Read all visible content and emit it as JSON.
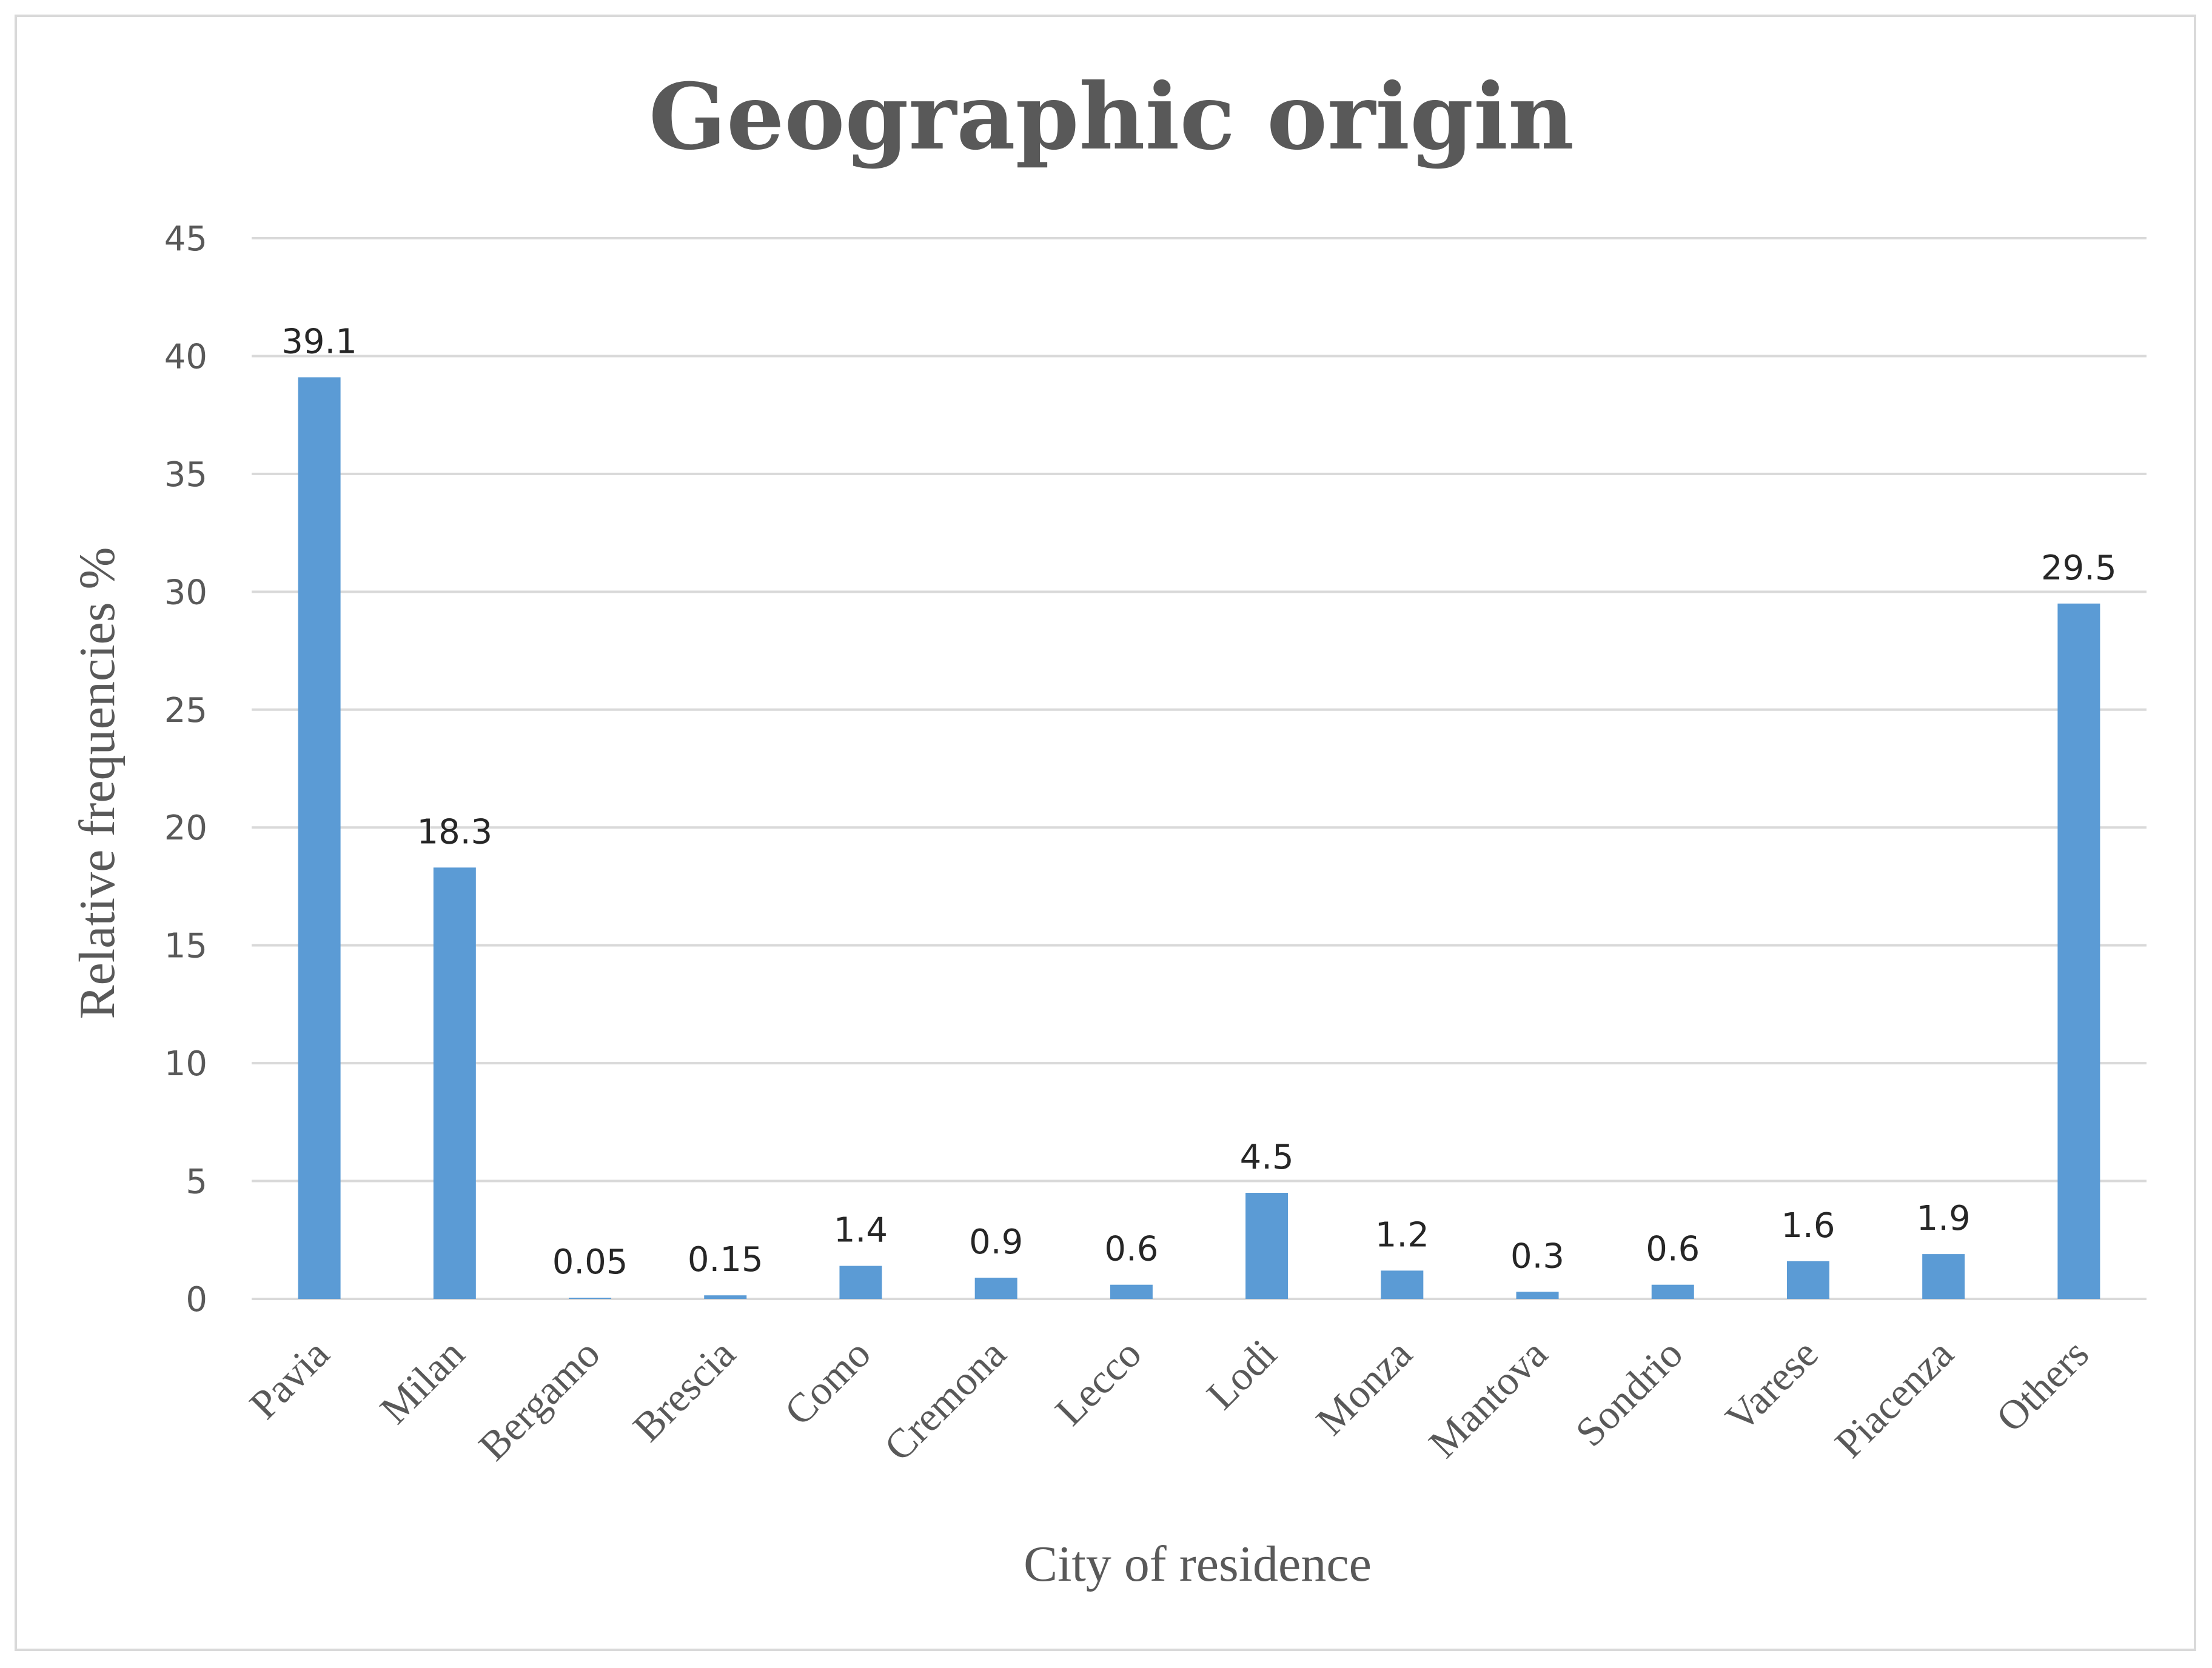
{
  "chart_data": {
    "type": "bar",
    "title": "Geographic origin",
    "xlabel": "City of residence",
    "ylabel": "Relative frequencies %",
    "categories": [
      "Pavia",
      "Milan",
      "Bergamo",
      "Brescia",
      "Como",
      "Cremona",
      "Lecco",
      "Lodi",
      "Monza",
      "Mantova",
      "Sondrio",
      "Varese",
      "Piacenza",
      "Others"
    ],
    "values": [
      39.1,
      18.3,
      0.05,
      0.15,
      1.4,
      0.9,
      0.6,
      4.5,
      1.2,
      0.3,
      0.6,
      1.6,
      1.9,
      29.5
    ],
    "value_labels": [
      "39.1",
      "18.3",
      "0.05",
      "0.15",
      "1.4",
      "0.9",
      "0.6",
      "4.5",
      "1.2",
      "0.3",
      "0.6",
      "1.6",
      "1.9",
      "29.5"
    ],
    "ylim": [
      0,
      45
    ],
    "yticks": [
      "0",
      "5",
      "10",
      "15",
      "20",
      "25",
      "30",
      "35",
      "40",
      "45"
    ],
    "grid": true,
    "legend": "none",
    "bar_color": "#5b9bd5"
  }
}
